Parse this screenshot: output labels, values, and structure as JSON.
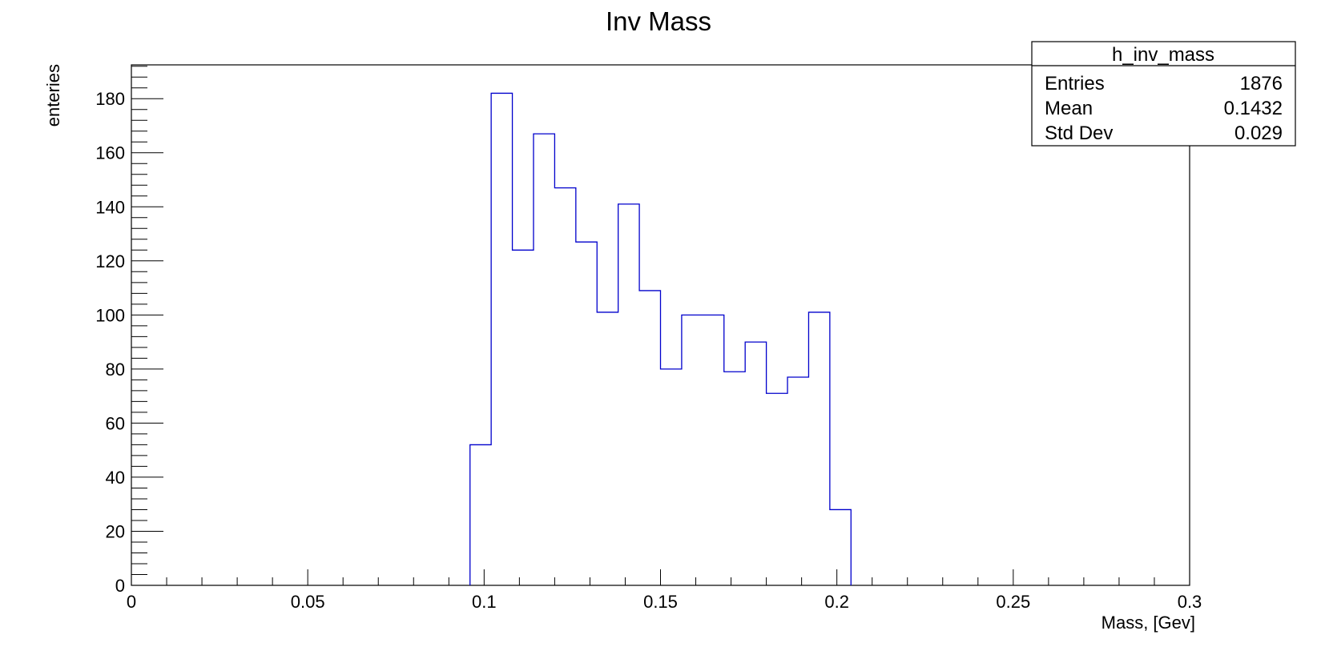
{
  "chart_data": {
    "type": "histogram",
    "title": "Inv Mass",
    "xlabel": "Mass, [Gev]",
    "ylabel": "enteries",
    "xlim": [
      0,
      0.3
    ],
    "ylim": [
      0,
      192.5
    ],
    "xticks": [
      0,
      0.05,
      0.1,
      0.15,
      0.2,
      0.25,
      0.3
    ],
    "xtick_labels": [
      "0",
      "0.05",
      "0.1",
      "0.15",
      "0.2",
      "0.25",
      "0.3"
    ],
    "yticks": [
      0,
      20,
      40,
      60,
      80,
      100,
      120,
      140,
      160,
      180
    ],
    "ytick_labels": [
      "0",
      "20",
      "40",
      "60",
      "80",
      "100",
      "120",
      "140",
      "160",
      "180"
    ],
    "grid": false,
    "line_color": "#0000cc",
    "bins": [
      {
        "x0": 0.096,
        "x1": 0.102,
        "count": 52
      },
      {
        "x0": 0.102,
        "x1": 0.108,
        "count": 182
      },
      {
        "x0": 0.108,
        "x1": 0.114,
        "count": 124
      },
      {
        "x0": 0.114,
        "x1": 0.12,
        "count": 167
      },
      {
        "x0": 0.12,
        "x1": 0.126,
        "count": 147
      },
      {
        "x0": 0.126,
        "x1": 0.132,
        "count": 127
      },
      {
        "x0": 0.132,
        "x1": 0.138,
        "count": 101
      },
      {
        "x0": 0.138,
        "x1": 0.144,
        "count": 141
      },
      {
        "x0": 0.144,
        "x1": 0.15,
        "count": 109
      },
      {
        "x0": 0.15,
        "x1": 0.156,
        "count": 80
      },
      {
        "x0": 0.156,
        "x1": 0.162,
        "count": 100
      },
      {
        "x0": 0.162,
        "x1": 0.168,
        "count": 100
      },
      {
        "x0": 0.168,
        "x1": 0.174,
        "count": 79
      },
      {
        "x0": 0.174,
        "x1": 0.18,
        "count": 90
      },
      {
        "x0": 0.18,
        "x1": 0.186,
        "count": 71
      },
      {
        "x0": 0.186,
        "x1": 0.192,
        "count": 77
      },
      {
        "x0": 0.192,
        "x1": 0.198,
        "count": 101
      },
      {
        "x0": 0.198,
        "x1": 0.204,
        "count": 28
      }
    ],
    "stats_box": {
      "name": "h_inv_mass",
      "placement": "top-right",
      "rows": [
        {
          "label": "Entries",
          "value": "1876"
        },
        {
          "label": "Mean",
          "value": "0.1432"
        },
        {
          "label": "Std Dev",
          "value": "0.029"
        }
      ]
    }
  }
}
